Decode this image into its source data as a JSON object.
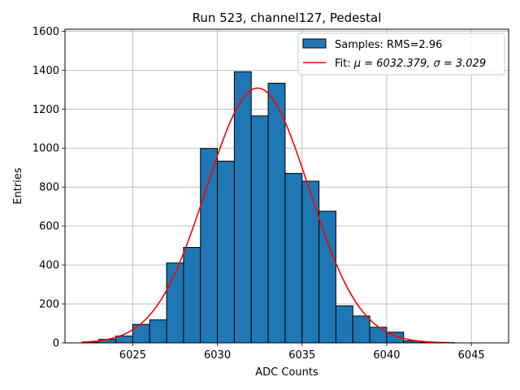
{
  "chart_data": {
    "type": "bar",
    "title": "Run 523, channel127, Pedestal",
    "xlabel": "ADC Counts",
    "ylabel": "Entries",
    "xlim": [
      6021,
      6047.2
    ],
    "ylim": [
      0,
      1610
    ],
    "grid": true,
    "x_ticks": [
      6025,
      6030,
      6035,
      6040,
      6045
    ],
    "y_ticks": [
      0,
      200,
      400,
      600,
      800,
      1000,
      1200,
      1400,
      1600
    ],
    "legend_position": "top-right",
    "colors": {
      "bars": "#1f77b4",
      "bar_edge": "#000000",
      "fit": "#ff0000",
      "grid": "#b0b0b0"
    },
    "series": [
      {
        "name": "Samples: RMS=2.96",
        "kind": "histogram",
        "bin_edges": [
          6022,
          6023,
          6024,
          6025,
          6026,
          6027,
          6028,
          6029,
          6030,
          6031,
          6032,
          6033,
          6034,
          6035,
          6036,
          6037,
          6038,
          6039,
          6040,
          6041,
          6042,
          6043,
          6044
        ],
        "values": [
          3,
          18,
          35,
          95,
          118,
          410,
          490,
          998,
          933,
          1392,
          1165,
          1333,
          870,
          830,
          676,
          190,
          138,
          80,
          55,
          10,
          4,
          2
        ]
      },
      {
        "name_prefix": "Fit: ",
        "name_math": "μ = 6032.379, σ = 3.029",
        "kind": "gaussian-fit",
        "mu": 6032.379,
        "sigma": 3.029,
        "amplitude": 1308,
        "x_range": [
          6022,
          6044
        ]
      }
    ]
  }
}
